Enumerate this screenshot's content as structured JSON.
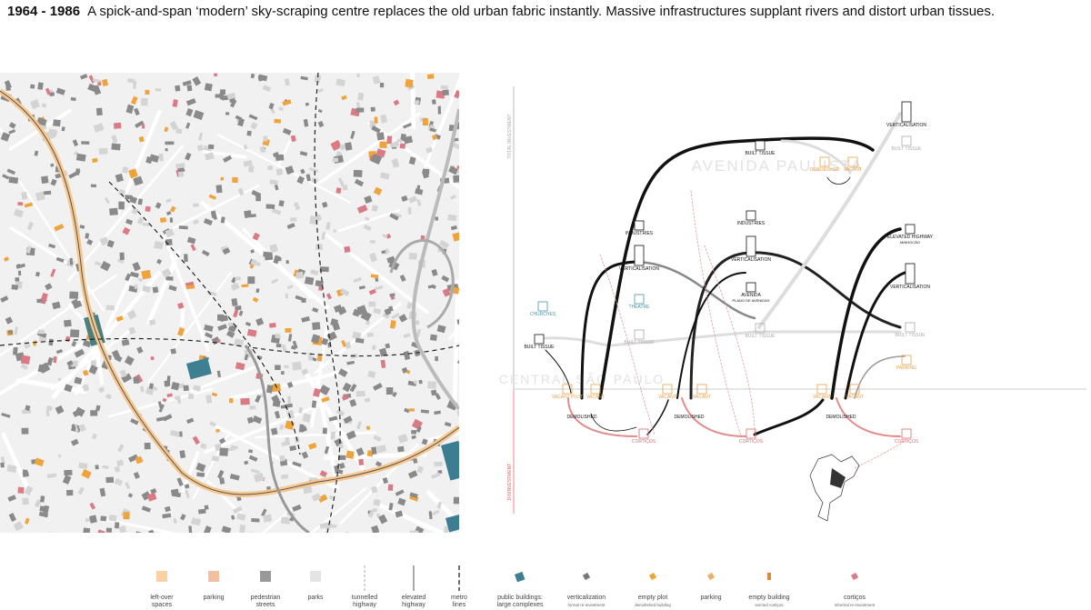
{
  "header": {
    "period": "1964 - 1986",
    "caption": "A spick-and-span ‘modern’ sky-scraping centre replaces the old urban fabric instantly. Massive infrastructures supplant rivers and distort urban tissues."
  },
  "diagram": {
    "axis_top": "TOTAL INVESTMENT",
    "axis_bottom": "DISINVESTMENT",
    "area_top": "AVENIDA PAULISTA",
    "area_bottom": "CENTRAL SÃO PAULO",
    "nodes": [
      {
        "label": "CHURCHES"
      },
      {
        "label": "BUILT TISSUE"
      },
      {
        "label": "VERTICALISATION"
      },
      {
        "label": "INDUSTRIES"
      },
      {
        "label": "THEATRE"
      },
      {
        "label": "BUILT TISSUE"
      },
      {
        "label": "BUILT TISSUE"
      },
      {
        "label": "INDUSTRIES"
      },
      {
        "label": "VERTICALISATION"
      },
      {
        "label": "AVENIDA",
        "sub": "PLANO DE AVENIDAS"
      },
      {
        "label": "BUILT TISSUE"
      },
      {
        "label": "VERTICALISATION"
      },
      {
        "label": "BUILT TISSUE"
      },
      {
        "label": "DEMOLISHED"
      },
      {
        "label": "VACANT"
      },
      {
        "label": "ELEVATED HIGHWAY",
        "sub": "MINHOCÃO"
      },
      {
        "label": "VERTICALISATION"
      },
      {
        "label": "BUILT TISSUE"
      },
      {
        "label": "PARKING"
      },
      {
        "label": "VACANT PLOT"
      },
      {
        "label": "VACANT"
      },
      {
        "label": "DEMOLISHED"
      },
      {
        "label": "CORTIÇOS"
      },
      {
        "label": "VACANT"
      },
      {
        "label": "VACANT"
      },
      {
        "label": "DEMOLISHED"
      },
      {
        "label": "CORTIÇOS"
      },
      {
        "label": "VACANT"
      },
      {
        "label": "VACANT"
      },
      {
        "label": "DEMOLISHED"
      },
      {
        "label": "CORTIÇOS"
      }
    ]
  },
  "legend": [
    {
      "lines": [
        "left-over",
        "spaces"
      ]
    },
    {
      "lines": [
        "parking"
      ]
    },
    {
      "lines": [
        "pedestrian",
        "streets"
      ]
    },
    {
      "lines": [
        "parks"
      ]
    },
    {
      "lines": [
        "tunnelled",
        "highway"
      ]
    },
    {
      "lines": [
        "elevated",
        "highway"
      ]
    },
    {
      "lines": [
        "metro",
        "lines"
      ]
    },
    {
      "lines": [
        "public buildings:",
        "large complexes"
      ]
    },
    {
      "lines": [
        "verticalization"
      ],
      "note": "formal re-investment"
    },
    {
      "lines": [
        "empty plot"
      ],
      "note": "demolished building"
    },
    {
      "lines": [
        "parking"
      ]
    },
    {
      "lines": [
        "empty building"
      ],
      "note": "evicted cortiços"
    },
    {
      "lines": [
        "cortiços"
      ],
      "note": "informal re-investment"
    }
  ]
}
